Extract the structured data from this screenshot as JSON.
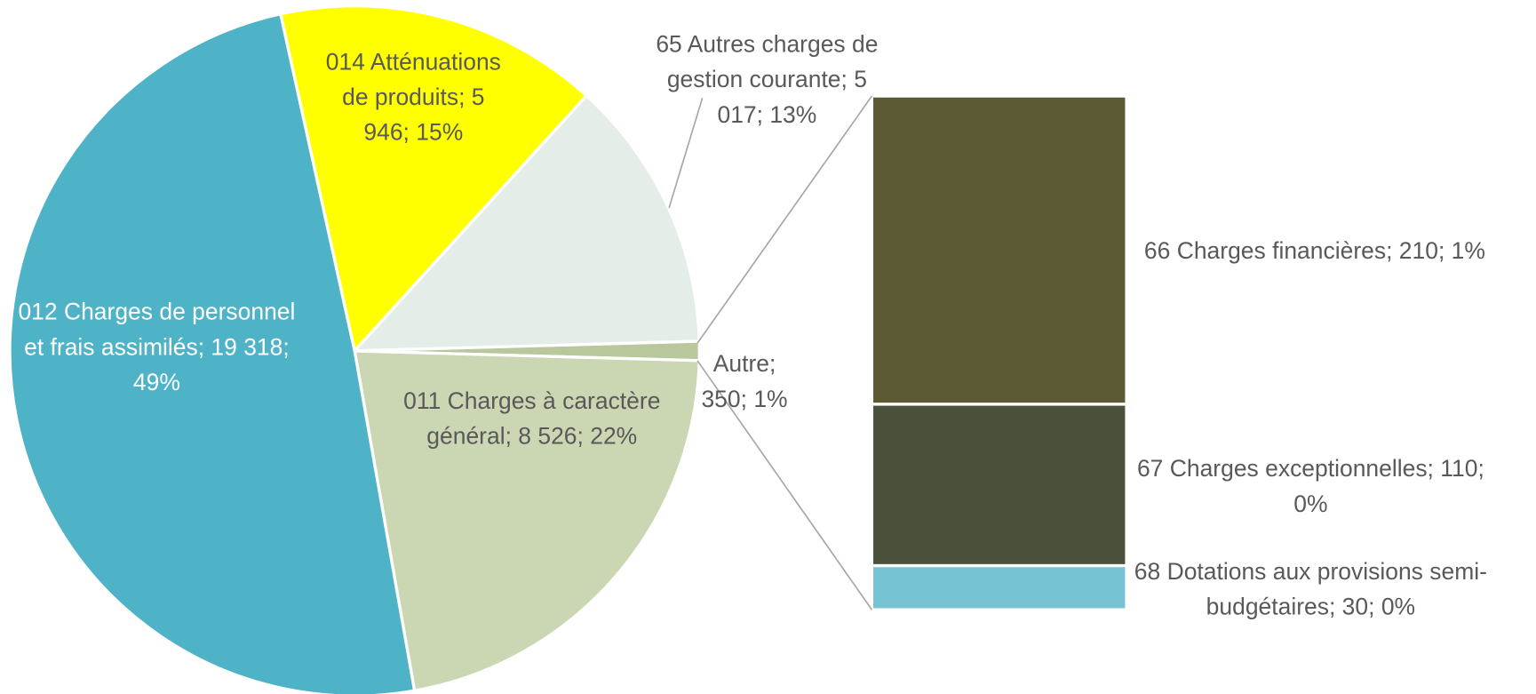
{
  "chart_data": {
    "type": "bar_of_pie",
    "pie": {
      "values": [
        5946,
        5017,
        350,
        8526,
        19318
      ],
      "value_labels": [
        "014 Atténuations de produits; 5 946; 15%",
        "65 Autres charges de gestion courante; 5 017; 13%",
        "Autre; 350; 1%",
        "011 Charges à caractère général; 8 526; 22%",
        "012 Charges de personnel et frais assimilés; 19 318; 49%"
      ],
      "colors": [
        "#ffff00",
        "#e5ede9",
        "#b8c89c",
        "#cbd6b3",
        "#4fb3c8"
      ]
    },
    "bar": {
      "values": [
        210,
        110,
        30
      ],
      "value_labels": [
        "66 Charges financières; 210; 1%",
        "67 Charges exceptionnelles; 110; 0%",
        "68 Dotations aux provisions semi-budgétaires; 30; 0%"
      ],
      "colors": [
        "#5c5a35",
        "#4a5039",
        "#76c3d3"
      ]
    }
  }
}
